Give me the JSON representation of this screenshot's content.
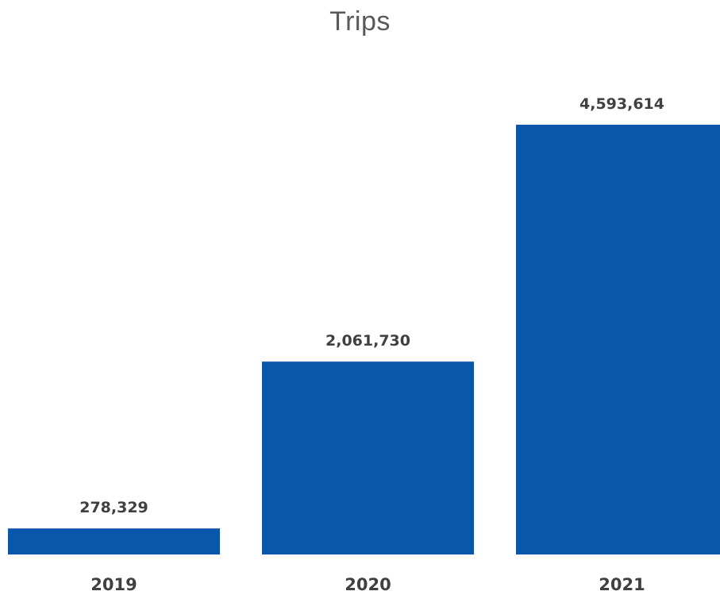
{
  "chart_data": {
    "type": "bar",
    "title": "Trips",
    "categories": [
      "2019",
      "2020",
      "2021"
    ],
    "values": [
      278329,
      2061730,
      4593614
    ],
    "data_labels": [
      "278,329",
      "2,061,730",
      "4,593,614"
    ],
    "xlabel": "",
    "ylabel": "",
    "ylim": [
      0,
      4593614
    ],
    "grid": false,
    "legend": "none",
    "bar_color": "#0A56AA",
    "label_color": "#404040",
    "title_color": "#595959"
  }
}
